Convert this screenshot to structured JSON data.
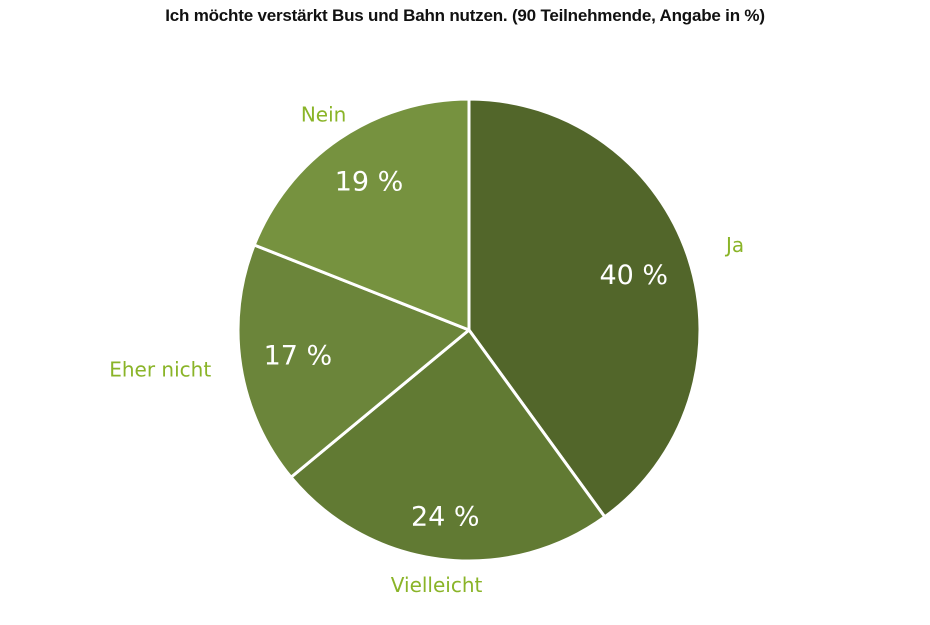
{
  "chart_data": {
    "type": "pie",
    "title": "Ich möchte verstärkt Bus und Bahn nutzen. (90 Teilnehmende, Angabe in %)",
    "slices": [
      {
        "category": "Ja",
        "value": 40,
        "label": "40 %",
        "color": "#52662a"
      },
      {
        "category": "Vielleicht",
        "value": 24,
        "label": "24 %",
        "color": "#617a33"
      },
      {
        "category": "Eher nicht",
        "value": 17,
        "label": "17 %",
        "color": "#6b853a"
      },
      {
        "category": "Nein",
        "value": 19,
        "label": "19 %",
        "color": "#76923f"
      }
    ],
    "category_label_color": "#8ab428",
    "start_angle": "12 o'clock",
    "direction": "clockwise",
    "legend": "none"
  }
}
